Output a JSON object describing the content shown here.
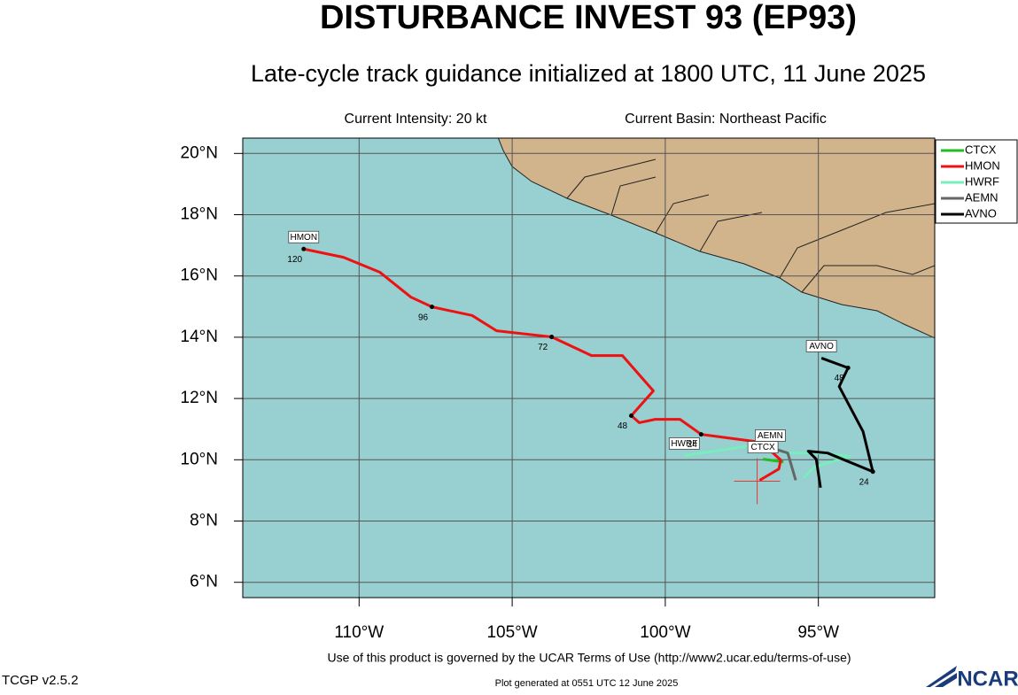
{
  "chart_data": {
    "type": "track",
    "title": "DISTURBANCE INVEST 93 (EP93)",
    "subtitle": "Late-cycle track guidance initialized at 1800 UTC, 11 June 2025",
    "intensity": "Current Intensity: 20 kt",
    "basin": "Current Basin: Northeast Pacific",
    "xlim": [
      -113.8,
      -91.2
    ],
    "ylim": [
      5.5,
      20.5
    ],
    "xticks": [
      {
        "value": -110,
        "label": "110°W"
      },
      {
        "value": -105,
        "label": "105°W"
      },
      {
        "value": -100,
        "label": "100°W"
      },
      {
        "value": -95,
        "label": "95°W"
      }
    ],
    "yticks": [
      {
        "value": 6,
        "label": "6°N"
      },
      {
        "value": 8,
        "label": "8°N"
      },
      {
        "value": 10,
        "label": "10°N"
      },
      {
        "value": 12,
        "label": "12°N"
      },
      {
        "value": 14,
        "label": "14°N"
      },
      {
        "value": 16,
        "label": "16°N"
      },
      {
        "value": 18,
        "label": "18°N"
      },
      {
        "value": 20,
        "label": "20°N"
      }
    ],
    "grid": true,
    "legend": "top-right",
    "current_position": {
      "x": -97.0,
      "y": 9.3
    },
    "series": [
      {
        "name": "CTCX",
        "color": "#22bb22",
        "x": [
          -96.14,
          -96.81
        ],
        "y": [
          9.93,
          10.02
        ]
      },
      {
        "name": "HMON",
        "color": "#ee1111",
        "x": [
          -96.92,
          -96.29,
          -96.23,
          -96.86,
          -98.83,
          -99.52,
          -100.33,
          -100.85,
          -101.11,
          -100.39,
          -101.4,
          -102.41,
          -103.71,
          -105.51,
          -106.31,
          -107.62,
          -108.31,
          -109.32,
          -110.51,
          -111.81
        ],
        "y": [
          9.33,
          9.7,
          9.99,
          10.57,
          10.83,
          11.32,
          11.32,
          11.21,
          11.44,
          12.25,
          13.4,
          13.4,
          14.01,
          14.21,
          14.71,
          14.99,
          15.31,
          16.12,
          16.61,
          16.88
        ]
      },
      {
        "name": "HWRF",
        "color": "#77eebb",
        "x": [
          -95.48,
          -95.13,
          -93.97,
          -94.84,
          -96.05,
          -96.86,
          -99.38
        ],
        "y": [
          9.41,
          9.76,
          10.11,
          10.22,
          10.22,
          10.51,
          10.14
        ]
      },
      {
        "name": "AEMN",
        "color": "#666666",
        "x": [
          -95.74,
          -96.0,
          -96.57
        ],
        "y": [
          9.33,
          10.22,
          10.4
        ]
      },
      {
        "name": "AVNO",
        "color": "#000000",
        "x": [
          -94.93,
          -95.07,
          -95.33,
          -94.7,
          -93.22,
          -93.54,
          -94.32,
          -94.03,
          -94.9
        ],
        "y": [
          9.09,
          10.02,
          10.28,
          10.22,
          9.61,
          10.92,
          12.39,
          13.0,
          13.32
        ]
      }
    ],
    "annotations": [
      {
        "text": "120",
        "x": -111.81,
        "y": 16.88
      },
      {
        "text": "96",
        "x": -107.62,
        "y": 14.99
      },
      {
        "text": "72",
        "x": -103.71,
        "y": 14.01
      },
      {
        "text": "48",
        "x": -101.11,
        "y": 11.44
      },
      {
        "text": "24",
        "x": -98.83,
        "y": 10.83
      },
      {
        "text": "24",
        "x": -93.22,
        "y": 9.61
      },
      {
        "text": "48",
        "x": -94.03,
        "y": 13.0
      }
    ],
    "footer": "Use of this product is governed by the UCAR Terms of Use (http://www2.ucar.edu/terms-of-use)",
    "version": "TCGP v2.5.2",
    "generated": "Plot generated at 0551 UTC   12 June 2025",
    "logo": "NCAR"
  }
}
